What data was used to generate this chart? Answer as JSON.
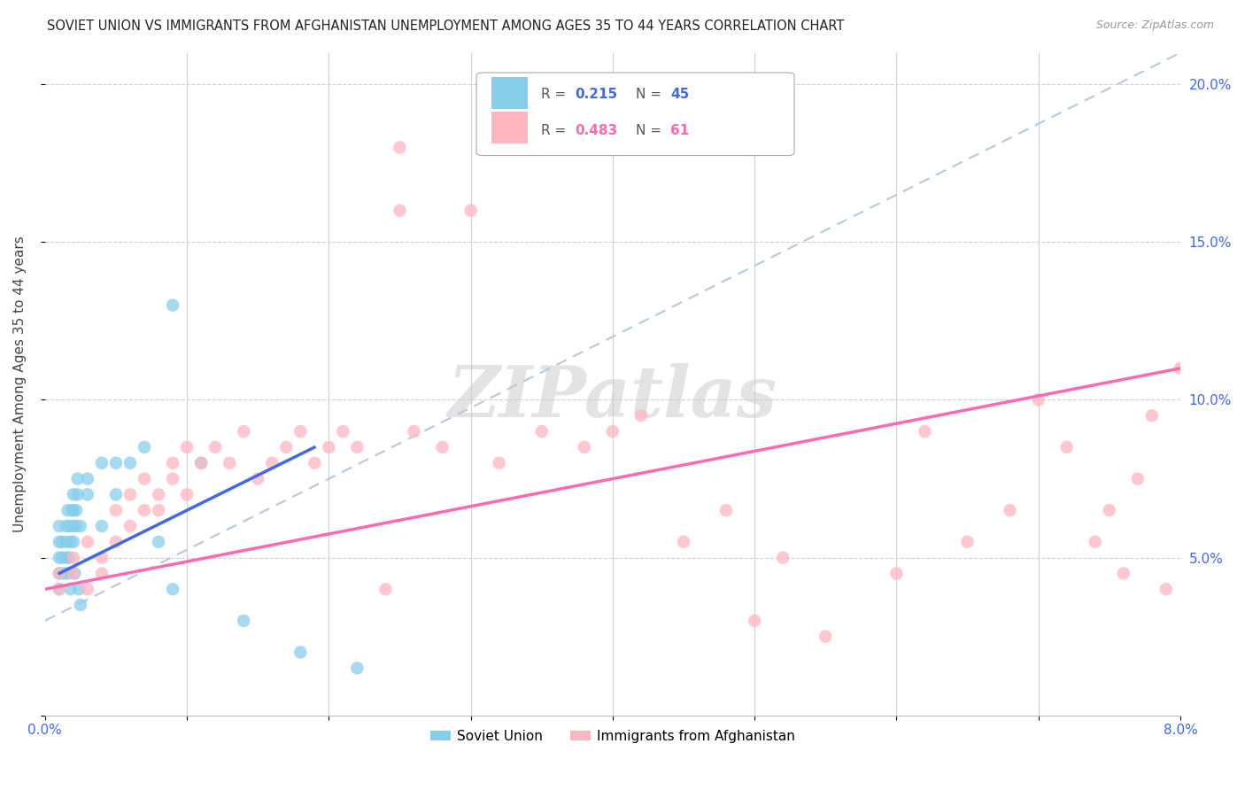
{
  "title": "SOVIET UNION VS IMMIGRANTS FROM AFGHANISTAN UNEMPLOYMENT AMONG AGES 35 TO 44 YEARS CORRELATION CHART",
  "source": "Source: ZipAtlas.com",
  "ylabel": "Unemployment Among Ages 35 to 44 years",
  "xlim": [
    0.0,
    0.08
  ],
  "ylim": [
    0.0,
    0.21
  ],
  "xtick_vals": [
    0.0,
    0.01,
    0.02,
    0.03,
    0.04,
    0.05,
    0.06,
    0.07,
    0.08
  ],
  "xticklabels": [
    "0.0%",
    "",
    "",
    "",
    "",
    "",
    "",
    "",
    "8.0%"
  ],
  "ytick_vals": [
    0.0,
    0.05,
    0.1,
    0.15,
    0.2
  ],
  "yticklabels": [
    "",
    "5.0%",
    "10.0%",
    "15.0%",
    "20.0%"
  ],
  "soviet_color": "#87CEEB",
  "afghan_color": "#FFB6C1",
  "soviet_line_color": "#4169E1",
  "afghan_line_color": "#FF69B4",
  "dashed_line_color": "#B8C8DC",
  "watermark": "ZIPatlas",
  "tick_color": "#4169E1",
  "grid_color": "#D0D0D0",
  "soviet_x": [
    0.001,
    0.001,
    0.001,
    0.001,
    0.001,
    0.0012,
    0.0012,
    0.0013,
    0.0015,
    0.0015,
    0.0015,
    0.0016,
    0.0016,
    0.0017,
    0.0017,
    0.0018,
    0.0018,
    0.0019,
    0.002,
    0.002,
    0.002,
    0.002,
    0.0021,
    0.0022,
    0.0022,
    0.0023,
    0.0023,
    0.0024,
    0.0025,
    0.0025,
    0.003,
    0.003,
    0.004,
    0.004,
    0.005,
    0.005,
    0.006,
    0.007,
    0.008,
    0.009,
    0.009,
    0.011,
    0.014,
    0.018,
    0.022
  ],
  "soviet_y": [
    0.05,
    0.055,
    0.06,
    0.04,
    0.045,
    0.05,
    0.055,
    0.045,
    0.05,
    0.055,
    0.06,
    0.045,
    0.065,
    0.05,
    0.06,
    0.055,
    0.04,
    0.065,
    0.055,
    0.06,
    0.065,
    0.07,
    0.045,
    0.06,
    0.065,
    0.07,
    0.075,
    0.04,
    0.06,
    0.035,
    0.07,
    0.075,
    0.06,
    0.08,
    0.07,
    0.08,
    0.08,
    0.085,
    0.055,
    0.04,
    0.13,
    0.08,
    0.03,
    0.02,
    0.015
  ],
  "soviet_line_x": [
    0.001,
    0.019
  ],
  "soviet_line_y": [
    0.045,
    0.085
  ],
  "dashed_line_x": [
    0.0,
    0.08
  ],
  "dashed_line_y": [
    0.03,
    0.21
  ],
  "afghan_x": [
    0.001,
    0.001,
    0.002,
    0.002,
    0.003,
    0.003,
    0.004,
    0.004,
    0.005,
    0.005,
    0.006,
    0.006,
    0.007,
    0.007,
    0.008,
    0.008,
    0.009,
    0.009,
    0.01,
    0.01,
    0.011,
    0.012,
    0.013,
    0.014,
    0.015,
    0.016,
    0.017,
    0.018,
    0.019,
    0.02,
    0.021,
    0.022,
    0.024,
    0.025,
    0.026,
    0.028,
    0.03,
    0.032,
    0.035,
    0.038,
    0.04,
    0.042,
    0.045,
    0.048,
    0.05,
    0.052,
    0.055,
    0.06,
    0.062,
    0.065,
    0.068,
    0.07,
    0.072,
    0.074,
    0.075,
    0.076,
    0.077,
    0.078,
    0.079,
    0.08,
    0.025
  ],
  "afghan_y": [
    0.04,
    0.045,
    0.045,
    0.05,
    0.04,
    0.055,
    0.045,
    0.05,
    0.055,
    0.065,
    0.06,
    0.07,
    0.065,
    0.075,
    0.065,
    0.07,
    0.075,
    0.08,
    0.07,
    0.085,
    0.08,
    0.085,
    0.08,
    0.09,
    0.075,
    0.08,
    0.085,
    0.09,
    0.08,
    0.085,
    0.09,
    0.085,
    0.04,
    0.18,
    0.09,
    0.085,
    0.16,
    0.08,
    0.09,
    0.085,
    0.09,
    0.095,
    0.055,
    0.065,
    0.03,
    0.05,
    0.025,
    0.045,
    0.09,
    0.055,
    0.065,
    0.1,
    0.085,
    0.055,
    0.065,
    0.045,
    0.075,
    0.095,
    0.04,
    0.11,
    0.16
  ],
  "afghan_line_x": [
    0.0,
    0.08
  ],
  "afghan_line_y": [
    0.04,
    0.11
  ]
}
